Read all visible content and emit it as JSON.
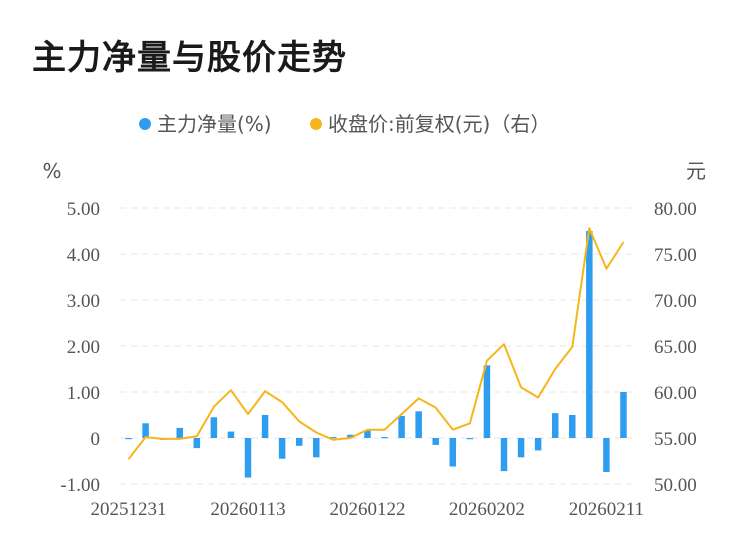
{
  "title": "主力净量与股价走势",
  "colors": {
    "bar": "#2e9df0",
    "line": "#f5b61a",
    "grid": "#e6e6e6",
    "text": "#555555"
  },
  "chart_data": {
    "type": "bar+line",
    "legend": [
      {
        "label": "主力净量(%)",
        "color": "#2e9df0",
        "marker": "dot"
      },
      {
        "label": "收盘价:前复权(元)（右）",
        "color": "#f5b61a",
        "marker": "dot"
      }
    ],
    "legend_position": "top-center",
    "left_unit": "%",
    "right_unit": "元",
    "left_ticks": [
      "5.00",
      "4.00",
      "3.00",
      "2.00",
      "1.00",
      "0",
      "-1.00"
    ],
    "right_ticks": [
      "80.00",
      "75.00",
      "70.00",
      "65.00",
      "60.00",
      "55.00",
      "50.00"
    ],
    "left_ylim": [
      -1,
      5
    ],
    "right_ylim": [
      50,
      80
    ],
    "x_tick_labels": [
      {
        "index": 0,
        "label": "20251231"
      },
      {
        "index": 7,
        "label": "20260113"
      },
      {
        "index": 14,
        "label": "20260122"
      },
      {
        "index": 21,
        "label": "20260202"
      },
      {
        "index": 28,
        "label": "20260211"
      }
    ],
    "grid": true,
    "bar_series": {
      "name": "主力净量(%)",
      "values": [
        -0.02,
        0.32,
        -0.04,
        0.22,
        -0.22,
        0.45,
        0.14,
        -0.86,
        0.5,
        -0.45,
        -0.17,
        -0.42,
        0.02,
        0.07,
        0.16,
        0.02,
        0.48,
        0.58,
        -0.15,
        -0.62,
        -0.02,
        1.58,
        -0.72,
        -0.42,
        -0.27,
        0.54,
        0.5,
        4.5,
        -0.74,
        1.0
      ]
    },
    "line_series": {
      "name": "收盘价:前复权(元)（右）",
      "values": [
        52.7,
        55.1,
        54.9,
        54.9,
        55.2,
        58.4,
        60.2,
        57.6,
        60.1,
        58.9,
        56.8,
        55.6,
        54.8,
        55.0,
        55.9,
        55.9,
        57.6,
        59.3,
        58.3,
        55.9,
        56.6,
        63.4,
        65.2,
        60.5,
        59.4,
        62.5,
        64.9,
        77.8,
        73.4,
        76.3
      ]
    }
  }
}
